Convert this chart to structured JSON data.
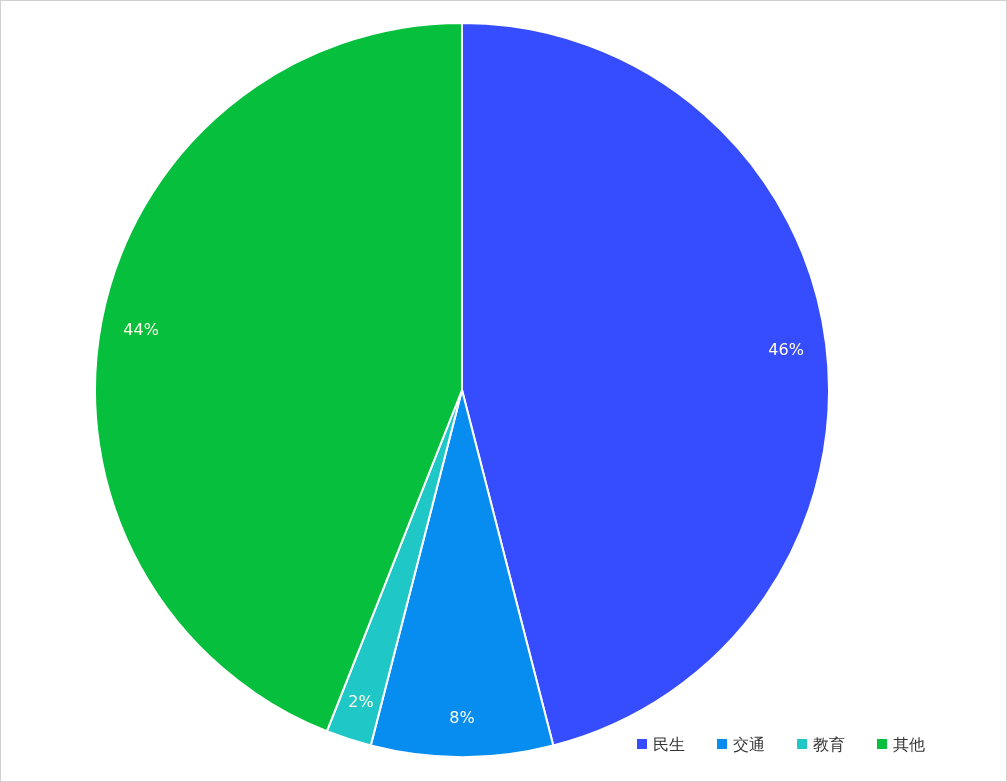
{
  "chart_data": {
    "type": "pie",
    "categories": [
      "民生",
      "交通",
      "教育",
      "其他"
    ],
    "values": [
      46,
      8,
      2,
      44
    ],
    "value_labels": [
      "46%",
      "8%",
      "2%",
      "44%"
    ],
    "colors": [
      "#364dff",
      "#078cf0",
      "#1fc7c7",
      "#06bf3c"
    ],
    "legend": "bottom right"
  }
}
